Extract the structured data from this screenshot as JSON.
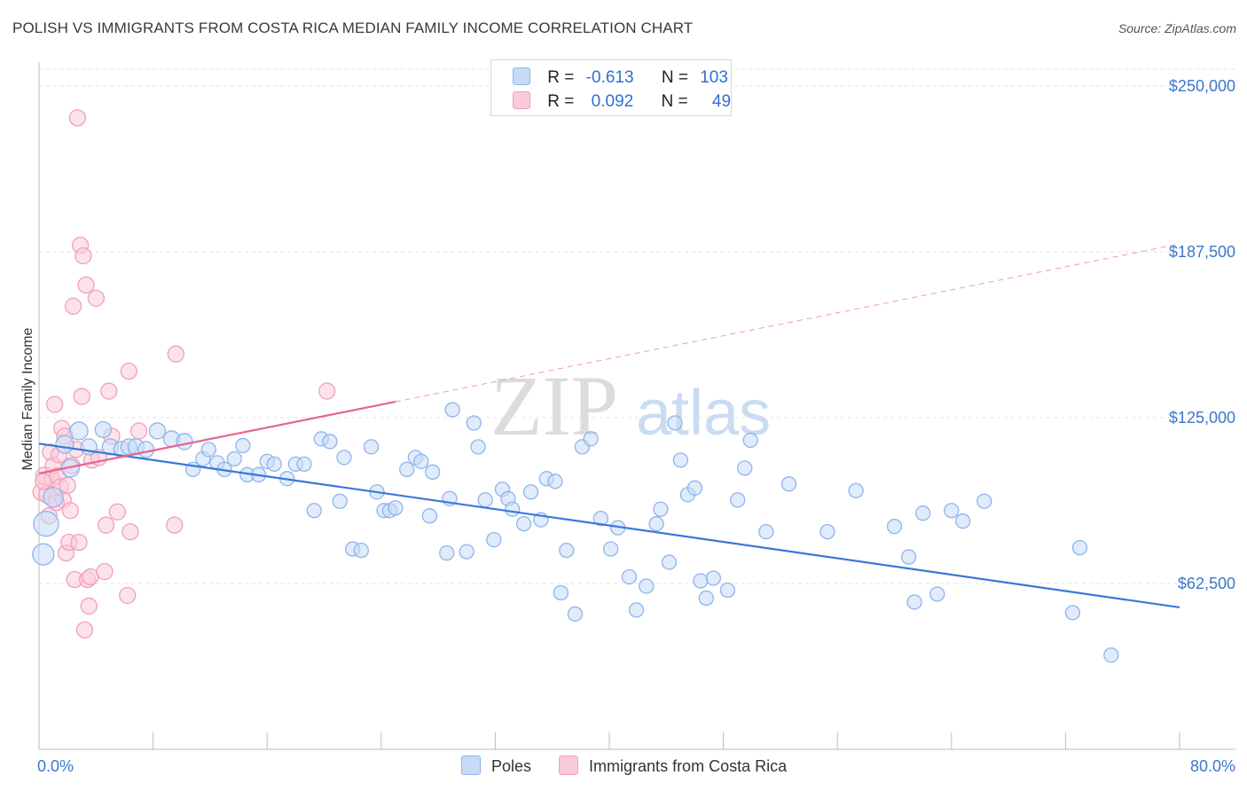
{
  "title": "POLISH VS IMMIGRANTS FROM COSTA RICA MEDIAN FAMILY INCOME CORRELATION CHART",
  "source": "Source: ZipAtlas.com",
  "watermark": {
    "zip": "ZIP",
    "atlas": "atlas"
  },
  "legend_stats": [
    {
      "r_label": "R =",
      "r_value": "-0.613",
      "n_label": "N =",
      "n_value": "103",
      "color": "#8fb4ea",
      "fill": "#c6dbf7"
    },
    {
      "r_label": "R =",
      "r_value": "0.092",
      "n_label": "N =",
      "n_value": "49",
      "color": "#f1a0b9",
      "fill": "#f9cbd9"
    }
  ],
  "bottom_legend": [
    {
      "label": "Poles",
      "fill": "#c6dbf7",
      "stroke": "#8fb4ea"
    },
    {
      "label": "Immigrants from Costa Rica",
      "fill": "#f9cbd9",
      "stroke": "#f1a0b9"
    }
  ],
  "chart_data": {
    "type": "scatter",
    "title": "POLISH VS IMMIGRANTS FROM COSTA RICA MEDIAN FAMILY INCOME CORRELATION CHART",
    "xlabel": "",
    "ylabel": "Median Family Income",
    "xlim": [
      0,
      80
    ],
    "ylim": [
      0,
      262500
    ],
    "x_tick_labels": [
      {
        "value": 0,
        "label": "0.0%"
      },
      {
        "value": 80,
        "label": "80.0%"
      }
    ],
    "y_ticks": [
      {
        "value": 62500,
        "label": "$62,500"
      },
      {
        "value": 125000,
        "label": "$125,000"
      },
      {
        "value": 187500,
        "label": "$187,500"
      },
      {
        "value": 250000,
        "label": "$250,000"
      }
    ],
    "series": [
      {
        "name": "Poles",
        "color": "#3a78d8",
        "stroke": "#8fb4ea",
        "fill": "rgba(198,219,247,0.55)",
        "trend": {
          "x0": 0,
          "y0": 115200,
          "x1": 80,
          "y1": 53500,
          "style": "solid"
        },
        "points": [
          [
            0.5,
            85000,
            14
          ],
          [
            0.3,
            73500,
            12
          ],
          [
            1.0,
            95000,
            11
          ],
          [
            1.8,
            115000,
            10
          ],
          [
            2.2,
            106000,
            10
          ],
          [
            2.8,
            120000,
            10
          ],
          [
            3.5,
            114000,
            9
          ],
          [
            4.5,
            120500,
            9
          ],
          [
            5.0,
            114000,
            9
          ],
          [
            5.8,
            113000,
            9
          ],
          [
            6.3,
            114000,
            9
          ],
          [
            6.8,
            114000,
            9
          ],
          [
            7.5,
            113000,
            9
          ],
          [
            8.3,
            120000,
            9
          ],
          [
            9.3,
            117000,
            9
          ],
          [
            10.2,
            116000,
            9
          ],
          [
            10.8,
            105500,
            8
          ],
          [
            11.5,
            109500,
            8
          ],
          [
            11.9,
            113000,
            8
          ],
          [
            12.5,
            108000,
            8
          ],
          [
            13.0,
            105500,
            8
          ],
          [
            13.7,
            109500,
            8
          ],
          [
            14.3,
            114500,
            8
          ],
          [
            14.6,
            103500,
            8
          ],
          [
            15.4,
            103500,
            8
          ],
          [
            16.0,
            108500,
            8
          ],
          [
            16.5,
            107500,
            8
          ],
          [
            17.4,
            102000,
            8
          ],
          [
            18.0,
            107500,
            8
          ],
          [
            18.6,
            107500,
            8
          ],
          [
            19.3,
            90000,
            8
          ],
          [
            19.8,
            117000,
            8
          ],
          [
            20.4,
            116000,
            8
          ],
          [
            21.1,
            93500,
            8
          ],
          [
            21.4,
            110000,
            8
          ],
          [
            22.0,
            75500,
            8
          ],
          [
            22.6,
            75000,
            8
          ],
          [
            23.3,
            114000,
            8
          ],
          [
            23.7,
            97000,
            8
          ],
          [
            24.2,
            90000,
            8
          ],
          [
            24.6,
            90000,
            8
          ],
          [
            25.0,
            91000,
            8
          ],
          [
            25.8,
            105500,
            8
          ],
          [
            26.4,
            110000,
            8
          ],
          [
            26.8,
            108500,
            8
          ],
          [
            27.4,
            88000,
            8
          ],
          [
            27.6,
            104500,
            8
          ],
          [
            28.6,
            74000,
            8
          ],
          [
            28.8,
            94500,
            8
          ],
          [
            29.0,
            128000,
            8
          ],
          [
            30.0,
            74500,
            8
          ],
          [
            30.5,
            123000,
            8
          ],
          [
            30.8,
            114000,
            8
          ],
          [
            31.3,
            94000,
            8
          ],
          [
            31.9,
            79000,
            8
          ],
          [
            32.5,
            98000,
            8
          ],
          [
            32.9,
            94500,
            8
          ],
          [
            33.2,
            90500,
            8
          ],
          [
            34.0,
            85000,
            8
          ],
          [
            34.5,
            97000,
            8
          ],
          [
            35.2,
            86500,
            8
          ],
          [
            35.6,
            102000,
            8
          ],
          [
            36.2,
            101000,
            8
          ],
          [
            36.6,
            59000,
            8
          ],
          [
            37.0,
            75000,
            8
          ],
          [
            37.6,
            51000,
            8
          ],
          [
            38.1,
            114000,
            8
          ],
          [
            38.7,
            117000,
            8
          ],
          [
            39.4,
            87000,
            8
          ],
          [
            40.1,
            75500,
            8
          ],
          [
            40.6,
            83500,
            8
          ],
          [
            41.4,
            65000,
            8
          ],
          [
            41.9,
            52500,
            8
          ],
          [
            42.6,
            61500,
            8
          ],
          [
            43.3,
            85000,
            8
          ],
          [
            43.6,
            90500,
            8
          ],
          [
            44.2,
            70500,
            8
          ],
          [
            44.6,
            123000,
            8
          ],
          [
            45.0,
            109000,
            8
          ],
          [
            45.5,
            96000,
            8
          ],
          [
            46.0,
            98500,
            8
          ],
          [
            46.4,
            63500,
            8
          ],
          [
            46.8,
            57000,
            8
          ],
          [
            47.3,
            64500,
            8
          ],
          [
            48.3,
            60000,
            8
          ],
          [
            49.0,
            94000,
            8
          ],
          [
            49.5,
            106000,
            8
          ],
          [
            49.9,
            116500,
            8
          ],
          [
            51.0,
            82000,
            8
          ],
          [
            52.6,
            100000,
            8
          ],
          [
            55.3,
            82000,
            8
          ],
          [
            57.3,
            97500,
            8
          ],
          [
            60.0,
            84000,
            8
          ],
          [
            61.0,
            72500,
            8
          ],
          [
            61.4,
            55500,
            8
          ],
          [
            62.0,
            89000,
            8
          ],
          [
            63.0,
            58500,
            8
          ],
          [
            64.0,
            90000,
            8
          ],
          [
            64.8,
            86000,
            8
          ],
          [
            66.3,
            93500,
            8
          ],
          [
            72.5,
            51500,
            8
          ],
          [
            73.0,
            76000,
            8
          ],
          [
            75.2,
            35500,
            8
          ]
        ]
      },
      {
        "name": "Immigrants from Costa Rica",
        "color": "#e8648c",
        "stroke": "#f1a0b9",
        "fill": "rgba(249,203,217,0.55)",
        "trend": {
          "x0": 0,
          "y0": 104000,
          "x1": 25,
          "y1": 131000,
          "x_dash_end": 80,
          "y_dash_end": 190500
        },
        "points": [
          [
            0.2,
            97000,
            10
          ],
          [
            0.4,
            103000,
            10
          ],
          [
            0.6,
            96000,
            10
          ],
          [
            0.7,
            88000,
            9
          ],
          [
            0.8,
            112000,
            9
          ],
          [
            0.9,
            102000,
            9
          ],
          [
            1.0,
            107000,
            9
          ],
          [
            1.1,
            130000,
            9
          ],
          [
            1.3,
            103000,
            9
          ],
          [
            1.4,
            111000,
            9
          ],
          [
            1.5,
            99000,
            9
          ],
          [
            1.6,
            121000,
            9
          ],
          [
            1.7,
            94000,
            9
          ],
          [
            1.8,
            118000,
            9
          ],
          [
            1.9,
            74000,
            9
          ],
          [
            2.0,
            99500,
            9
          ],
          [
            2.1,
            78000,
            9
          ],
          [
            2.2,
            90000,
            9
          ],
          [
            2.3,
            107000,
            9
          ],
          [
            2.4,
            167000,
            9
          ],
          [
            2.5,
            64000,
            9
          ],
          [
            2.6,
            113000,
            9
          ],
          [
            2.7,
            238000,
            9
          ],
          [
            2.8,
            78000,
            9
          ],
          [
            2.9,
            190000,
            9
          ],
          [
            3.0,
            133000,
            9
          ],
          [
            3.1,
            186000,
            9
          ],
          [
            3.2,
            45000,
            9
          ],
          [
            3.3,
            175000,
            9
          ],
          [
            3.4,
            64000,
            9
          ],
          [
            3.5,
            54000,
            9
          ],
          [
            3.6,
            65000,
            9
          ],
          [
            3.7,
            109000,
            9
          ],
          [
            4.0,
            170000,
            9
          ],
          [
            4.2,
            110000,
            9
          ],
          [
            4.6,
            67000,
            9
          ],
          [
            4.7,
            84500,
            9
          ],
          [
            4.9,
            135000,
            9
          ],
          [
            5.1,
            118000,
            9
          ],
          [
            5.5,
            89500,
            9
          ],
          [
            6.2,
            58000,
            9
          ],
          [
            6.3,
            142500,
            9
          ],
          [
            6.4,
            82000,
            9
          ],
          [
            7.0,
            120000,
            9
          ],
          [
            9.5,
            84500,
            9
          ],
          [
            9.6,
            149000,
            9
          ],
          [
            20.2,
            135000,
            9
          ],
          [
            0.3,
            101000,
            9
          ],
          [
            1.2,
            93000,
            9
          ]
        ]
      }
    ]
  }
}
